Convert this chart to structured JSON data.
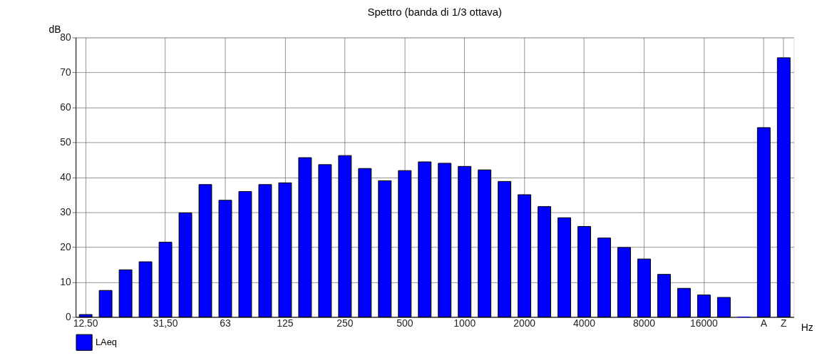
{
  "chart_data": {
    "type": "bar",
    "title": "Spettro (banda di 1/3 ottava)",
    "xlabel": "Hz",
    "ylabel": "dB",
    "categories": [
      "12.50",
      null,
      null,
      null,
      "31,50",
      null,
      null,
      "63",
      null,
      null,
      "125",
      null,
      null,
      "250",
      null,
      null,
      "500",
      null,
      null,
      "1000",
      null,
      null,
      "2000",
      null,
      null,
      "4000",
      null,
      null,
      "8000",
      null,
      null,
      "16000",
      null,
      null,
      "A",
      "Z"
    ],
    "series": [
      {
        "name": "LAeq",
        "color": "#0000ff",
        "values": [
          0.7,
          7.6,
          13.5,
          15.8,
          21.4,
          29.8,
          37.9,
          33.4,
          35.9,
          37.9,
          38.4,
          45.6,
          43.6,
          46.2,
          42.5,
          39.0,
          41.9,
          44.4,
          44.0,
          43.1,
          42.1,
          38.8,
          35.0,
          31.6,
          28.4,
          25.9,
          22.6,
          19.9,
          16.6,
          12.2,
          8.2,
          6.3,
          5.6,
          0,
          54.2,
          74.2
        ]
      }
    ],
    "ylim": [
      0,
      80
    ],
    "yticks": [
      0,
      10,
      20,
      30,
      40,
      50,
      60,
      70,
      80
    ],
    "grid": true,
    "legend": "bottom left"
  }
}
